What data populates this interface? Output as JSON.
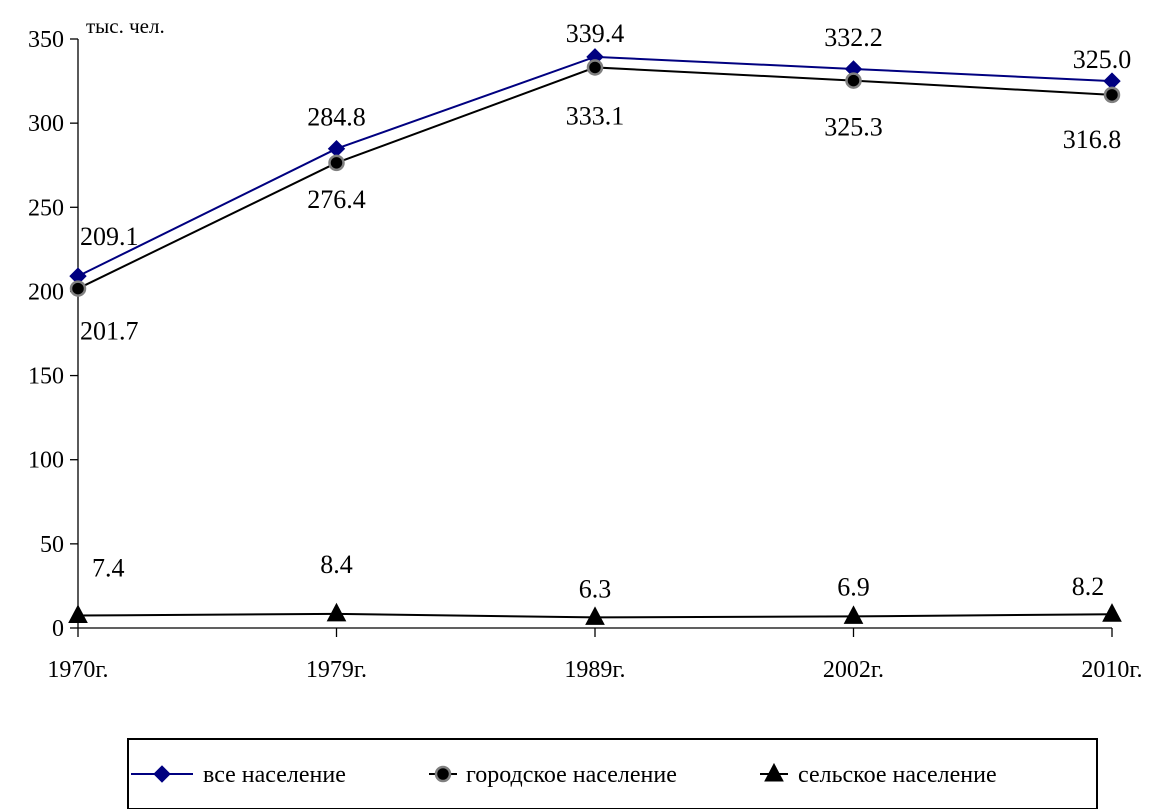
{
  "chart_data": {
    "type": "line",
    "categories": [
      "1970г.",
      "1979г.",
      "1989г.",
      "2002г.",
      "2010г."
    ],
    "y_unit_label": "тыс. чел.",
    "ylim": [
      0,
      350
    ],
    "y_ticks": [
      "0",
      "50",
      "100",
      "150",
      "200",
      "250",
      "300",
      "350"
    ],
    "grid": false,
    "legend_position": "bottom",
    "series": [
      {
        "name": "все население",
        "values": [
          209.1,
          284.8,
          339.4,
          332.2,
          325.0
        ],
        "labels": [
          "209.1",
          "284.8",
          "339.4",
          "332.2",
          "325.0"
        ],
        "color": "#000080",
        "marker": "diamond"
      },
      {
        "name": "городское население",
        "values": [
          201.7,
          276.4,
          333.1,
          325.3,
          316.8
        ],
        "labels": [
          "201.7",
          "276.4",
          "333.1",
          "325.3",
          "316.8"
        ],
        "color": "#000000",
        "marker": "circle"
      },
      {
        "name": "сельское население",
        "values": [
          7.4,
          8.4,
          6.3,
          6.9,
          8.2
        ],
        "labels": [
          "7.4",
          "8.4",
          "6.3",
          "6.9",
          "8.2"
        ],
        "color": "#000000",
        "marker": "triangle"
      }
    ]
  }
}
